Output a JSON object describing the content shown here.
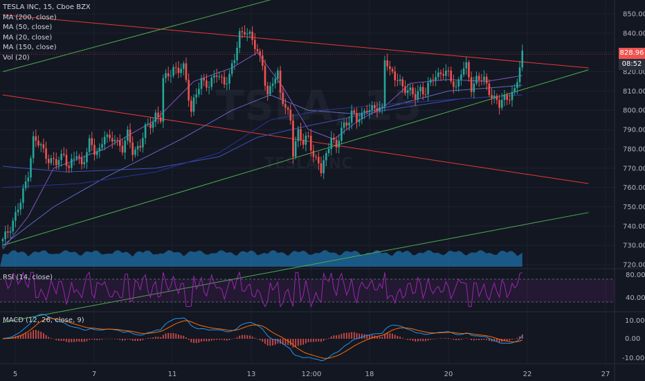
{
  "header": {
    "symbol_line": "TESLA INC, 15, Cboe BZX",
    "indicators": [
      "MA (200, close)",
      "MA (50, close)",
      "MA (20, close)",
      "MA (150, close)",
      "Vol (20)"
    ]
  },
  "watermark": {
    "symbol": "TSLA, 15",
    "name": "TESLA INC"
  },
  "last_price": {
    "price": "828.96",
    "countdown": "08:52",
    "bg": "#ef5350",
    "countdown_bg": "#2a2e39"
  },
  "rsi": {
    "label": "RSI (14, close)",
    "ticks": [
      "80.00",
      "40.00"
    ],
    "upper": 70,
    "lower": 30,
    "color": "#9c27b0"
  },
  "macd": {
    "label": "MACD (12, 26, close, 9)",
    "ticks": [
      "10.00",
      "0.00",
      "-10.00"
    ],
    "macd_color": "#2196f3",
    "signal_color": "#ff6d00",
    "hist_color": "#ef5350"
  },
  "colors": {
    "up": "#26a69a",
    "down": "#ef5350",
    "channel_red": "#e53935",
    "channel_green": "#4caf50",
    "volume": "#1e6fa8"
  },
  "chart_data": {
    "type": "candlestick",
    "x_ticks": [
      "5",
      "7",
      "11",
      "13",
      "12:00",
      "18",
      "20",
      "22",
      "27"
    ],
    "y_ticks": [
      "850.00",
      "840.00",
      "830.00",
      "820.00",
      "810.00",
      "800.00",
      "790.00",
      "780.00",
      "770.00",
      "760.00",
      "750.00",
      "740.00",
      "730.00",
      "720.00"
    ],
    "ylim": [
      718,
      854
    ],
    "close_path": [
      [
        0,
        732
      ],
      [
        3,
        740
      ],
      [
        7,
        752
      ],
      [
        10,
        768
      ],
      [
        12,
        785
      ],
      [
        15,
        781
      ],
      [
        18,
        775
      ],
      [
        21,
        772
      ],
      [
        24,
        778
      ],
      [
        26,
        770
      ],
      [
        29,
        777
      ],
      [
        31,
        772
      ],
      [
        34,
        783
      ],
      [
        36,
        778
      ],
      [
        38,
        780
      ],
      [
        40,
        788
      ],
      [
        42,
        783
      ],
      [
        44,
        786
      ],
      [
        47,
        780
      ],
      [
        49,
        787
      ],
      [
        51,
        779
      ],
      [
        54,
        782
      ],
      [
        56,
        790
      ],
      [
        58,
        793
      ],
      [
        60,
        798
      ],
      [
        62,
        795
      ],
      [
        63,
        815
      ],
      [
        65,
        819
      ],
      [
        67,
        822
      ],
      [
        69,
        820
      ],
      [
        71,
        822
      ],
      [
        72,
        816
      ],
      [
        74,
        800
      ],
      [
        75,
        805
      ],
      [
        76,
        808
      ],
      [
        78,
        815
      ],
      [
        81,
        814
      ],
      [
        84,
        818
      ],
      [
        87,
        815
      ],
      [
        89,
        818
      ],
      [
        91,
        826
      ],
      [
        93,
        840
      ],
      [
        95,
        842
      ],
      [
        97,
        838
      ],
      [
        99,
        833
      ],
      [
        101,
        828
      ],
      [
        102,
        825
      ],
      [
        103,
        814
      ],
      [
        104,
        806
      ],
      [
        106,
        815
      ],
      [
        108,
        820
      ],
      [
        109,
        810
      ],
      [
        111,
        800
      ],
      [
        113,
        795
      ],
      [
        114,
        778
      ],
      [
        116,
        790
      ],
      [
        118,
        782
      ],
      [
        120,
        786
      ],
      [
        122,
        777
      ],
      [
        124,
        773
      ],
      [
        125,
        768
      ],
      [
        127,
        776
      ],
      [
        129,
        788
      ],
      [
        131,
        780
      ],
      [
        133,
        790
      ],
      [
        135,
        793
      ],
      [
        137,
        800
      ],
      [
        139,
        794
      ],
      [
        141,
        797
      ],
      [
        143,
        802
      ],
      [
        146,
        800
      ],
      [
        149,
        801
      ],
      [
        150,
        828
      ],
      [
        151,
        825
      ],
      [
        152,
        820
      ],
      [
        154,
        816
      ],
      [
        156,
        815
      ],
      [
        159,
        810
      ],
      [
        162,
        807
      ],
      [
        164,
        812
      ],
      [
        166,
        809
      ],
      [
        169,
        817
      ],
      [
        172,
        820
      ],
      [
        175,
        818
      ],
      [
        178,
        812
      ],
      [
        180,
        820
      ],
      [
        182,
        822
      ],
      [
        184,
        812
      ],
      [
        186,
        817
      ],
      [
        189,
        815
      ],
      [
        192,
        808
      ],
      [
        194,
        805
      ],
      [
        195,
        802
      ],
      [
        197,
        806
      ],
      [
        199,
        808
      ],
      [
        201,
        810
      ],
      [
        202,
        815
      ],
      [
        203,
        822
      ],
      [
        204,
        829
      ]
    ],
    "moving_averages": [
      {
        "name": "MA (200, close)",
        "color": "#3f51b5",
        "path": [
          [
            0,
            771
          ],
          [
            25,
            768
          ],
          [
            60,
            770
          ],
          [
            85,
            776
          ],
          [
            100,
            786
          ],
          [
            120,
            792
          ],
          [
            150,
            800
          ],
          [
            180,
            806
          ],
          [
            204,
            808
          ]
        ]
      },
      {
        "name": "MA (50, close)",
        "color": "#5c6bc0",
        "path": [
          [
            0,
            730
          ],
          [
            20,
            750
          ],
          [
            40,
            765
          ],
          [
            70,
            785
          ],
          [
            90,
            800
          ],
          [
            105,
            808
          ],
          [
            120,
            800
          ],
          [
            140,
            798
          ],
          [
            155,
            803
          ],
          [
            175,
            810
          ],
          [
            195,
            812
          ],
          [
            204,
            813
          ]
        ]
      },
      {
        "name": "MA (20, close)",
        "color": "#7e57c2",
        "path": [
          [
            0,
            728
          ],
          [
            10,
            745
          ],
          [
            20,
            770
          ],
          [
            40,
            780
          ],
          [
            60,
            795
          ],
          [
            75,
            815
          ],
          [
            90,
            822
          ],
          [
            100,
            830
          ],
          [
            110,
            812
          ],
          [
            120,
            790
          ],
          [
            130,
            785
          ],
          [
            140,
            795
          ],
          [
            150,
            802
          ],
          [
            160,
            814
          ],
          [
            175,
            816
          ],
          [
            190,
            815
          ],
          [
            204,
            818
          ]
        ]
      },
      {
        "name": "MA (150, close)",
        "color": "#283593",
        "path": [
          [
            0,
            760
          ],
          [
            30,
            762
          ],
          [
            60,
            768
          ],
          [
            85,
            778
          ],
          [
            105,
            795
          ],
          [
            125,
            800
          ],
          [
            150,
            803
          ],
          [
            180,
            806
          ],
          [
            204,
            808
          ]
        ]
      }
    ],
    "trendlines": [
      {
        "color": "#e53935",
        "from": [
          0,
          849.5
        ],
        "to": [
          230,
          822
        ]
      },
      {
        "color": "#e53935",
        "from": [
          0,
          808
        ],
        "to": [
          230,
          762
        ]
      },
      {
        "color": "#4caf50",
        "from": [
          0,
          820
        ],
        "to": [
          110,
          859
        ]
      },
      {
        "color": "#4caf50",
        "from": [
          0,
          730
        ],
        "to": [
          230,
          821
        ]
      },
      {
        "color": "#4caf50",
        "from": [
          0,
          690
        ],
        "to": [
          230,
          747
        ]
      }
    ],
    "horizontal_level": 829
  }
}
